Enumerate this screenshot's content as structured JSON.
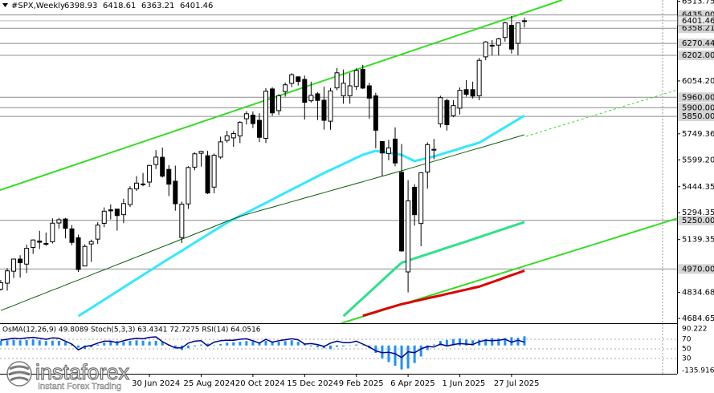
{
  "chart_data": {
    "type": "candlestick",
    "title": "#SPX,Weekly",
    "categories": [
      null,
      null,
      null,
      null,
      null,
      null,
      null,
      null,
      null,
      null,
      null,
      null,
      null,
      null,
      null,
      null,
      null,
      null,
      null,
      null,
      null,
      null,
      null,
      "30 Jun 2024",
      null,
      null,
      null,
      null,
      null,
      null,
      null,
      "25 Aug 2024",
      null,
      null,
      null,
      null,
      null,
      null,
      null,
      "20 Oct 2024",
      null,
      null,
      null,
      null,
      null,
      null,
      null,
      "15 Dec 2024",
      null,
      null,
      null,
      null,
      null,
      null,
      null,
      "9 Feb 2025",
      null,
      null,
      null,
      null,
      null,
      null,
      null,
      "6 Apr 2025",
      null,
      null,
      null,
      null,
      null,
      null,
      null,
      "1 Jun 2025",
      null,
      null,
      null,
      null,
      null,
      null,
      null,
      "27 Jul 2025",
      null,
      null
    ],
    "open": [
      4853,
      4888,
      4957,
      5027,
      4998,
      5094,
      5131,
      5115,
      5127,
      5235,
      5258,
      5201,
      5150,
      4987,
      5114,
      5142,
      5233,
      5311,
      5315,
      5283,
      5341,
      5432,
      5460,
      5471,
      5572,
      5614,
      5544,
      5476,
      5151,
      5345,
      5557,
      5637,
      5623,
      5442,
      5615,
      5711,
      5726,
      5737,
      5836,
      5857,
      5827,
      5723,
      6008,
      5883,
      5993,
      6040,
      6078,
      6063,
      5940,
      5980,
      5943,
      5822,
      6014,
      5969,
      5969,
      6023,
      6121,
      6026,
      5968,
      5705,
      5636,
      5719,
      5527,
      4953,
      5441,
      5232,
      5529,
      5655,
      5807,
      5941,
      5854,
      5897,
      6004,
      6004,
      5969,
      6193,
      6259,
      6261,
      6305,
      6375,
      6271,
      6398.93
    ],
    "high": [
      4907,
      4975,
      5030,
      5049,
      5111,
      5141,
      5190,
      5180,
      5262,
      5265,
      5264,
      5223,
      5168,
      5112,
      5139,
      5239,
      5325,
      5342,
      5315,
      5375,
      5447,
      5505,
      5524,
      5570,
      5655,
      5670,
      5569,
      5566,
      5358,
      5563,
      5643,
      5651,
      5651,
      5636,
      5733,
      5767,
      5765,
      5822,
      5879,
      5878,
      5868,
      6012,
      6018,
      5977,
      6045,
      6099,
      6079,
      6085,
      6050,
      5990,
      6021,
      6014,
      6128,
      6120,
      6101,
      6127,
      6147,
      6044,
      5986,
      5705,
      5715,
      5787,
      5691,
      5482,
      5459,
      5528,
      5700,
      5720,
      5969,
      5953,
      5943,
      6017,
      6059,
      6050,
      6187,
      6284,
      6290,
      6303,
      6395,
      6428,
      6389,
      6418.61
    ],
    "low": [
      4845,
      4845,
      4918,
      4920,
      4946,
      5057,
      5085,
      5104,
      5117,
      5203,
      5146,
      5107,
      4953,
      4985,
      5011,
      5114,
      5211,
      5256,
      5191,
      5234,
      5327,
      5420,
      5447,
      5443,
      5546,
      5497,
      5390,
      5306,
      5120,
      5316,
      5539,
      5560,
      5402,
      5406,
      5604,
      5698,
      5674,
      5696,
      5803,
      5783,
      5702,
      5696,
      5853,
      5858,
      5964,
      6019,
      6028,
      5832,
      5930,
      5829,
      5773,
      5773,
      6000,
      5923,
      5923,
      6003,
      6008,
      5837,
      5666,
      5505,
      5597,
      5562,
      5069,
      4835,
      5220,
      5101,
      5433,
      5603,
      5786,
      5768,
      5845,
      5861,
      5964,
      5953,
      5943,
      6174,
      6201,
      6201,
      6281,
      6212,
      6203,
      6363.21
    ],
    "close": [
      4891,
      4959,
      5027,
      5006,
      5089,
      5137,
      5124,
      5117,
      5234,
      5254,
      5204,
      5123,
      4967,
      5100,
      5128,
      5223,
      5303,
      5305,
      5278,
      5347,
      5432,
      5465,
      5460,
      5567,
      5615,
      5505,
      5459,
      5346,
      5344,
      5555,
      5634,
      5648,
      5408,
      5626,
      5703,
      5738,
      5751,
      5815,
      5865,
      5808,
      5729,
      5995,
      5870,
      5969,
      6032,
      6090,
      6051,
      5931,
      5971,
      5942,
      5827,
      5997,
      6101,
      6041,
      6026,
      6115,
      6013,
      5955,
      5770,
      5639,
      5668,
      5581,
      5074,
      5363,
      5283,
      5525,
      5687,
      5660,
      5958,
      5802,
      5912,
      6000,
      5977,
      5967,
      6173,
      6279,
      6260,
      6297,
      6389,
      6238,
      6389,
      6401.46
    ],
    "lines": [
      {
        "color": "#33e8ff",
        "width": 3,
        "values": [
          null,
          null,
          null,
          null,
          null,
          null,
          null,
          null,
          null,
          null,
          null,
          null,
          4698,
          4722,
          4745,
          4769,
          4793,
          4816,
          4840,
          4864,
          4888,
          4911,
          4935,
          4959,
          4982,
          5006,
          5029,
          5052,
          5075,
          5098,
          5122,
          5145,
          5168,
          5191,
          5214,
          5237,
          5256,
          5275,
          5294,
          5313,
          5332,
          5351,
          5370,
          5390,
          5409,
          5428,
          5447,
          5466,
          5485,
          5504,
          5523,
          5541,
          5558,
          5576,
          5593,
          5611,
          5628,
          5640,
          5651,
          5645,
          5640,
          5634,
          5628,
          5610,
          5592,
          5601,
          5610,
          5619,
          5630,
          5642,
          5653,
          5664,
          5676,
          5687,
          5698,
          5720,
          5743,
          5765,
          5787,
          5810,
          5832,
          5854
        ]
      },
      {
        "color": "#2fe08a",
        "width": 3,
        "values": [
          null,
          null,
          null,
          null,
          null,
          null,
          null,
          null,
          null,
          null,
          null,
          null,
          null,
          null,
          null,
          null,
          null,
          null,
          null,
          null,
          null,
          null,
          null,
          null,
          null,
          null,
          null,
          null,
          null,
          null,
          null,
          null,
          null,
          null,
          null,
          null,
          null,
          null,
          null,
          null,
          null,
          null,
          null,
          null,
          null,
          null,
          null,
          null,
          null,
          null,
          null,
          null,
          null,
          4698,
          4732,
          4767,
          4801,
          4835,
          4869,
          4904,
          4938,
          4972,
          5006,
          5018,
          5031,
          5043,
          5055,
          5067,
          5080,
          5092,
          5104,
          5116,
          5128,
          5141,
          5153,
          5166,
          5178,
          5191,
          5203,
          5216,
          5228,
          5240
        ]
      },
      {
        "color": "#dd0000",
        "width": 3,
        "values": [
          null,
          null,
          null,
          null,
          null,
          null,
          null,
          null,
          null,
          null,
          null,
          null,
          null,
          null,
          null,
          null,
          null,
          null,
          null,
          null,
          null,
          null,
          null,
          null,
          null,
          null,
          null,
          null,
          null,
          null,
          null,
          null,
          null,
          null,
          null,
          null,
          null,
          null,
          null,
          null,
          null,
          null,
          null,
          null,
          null,
          null,
          null,
          null,
          null,
          null,
          null,
          null,
          null,
          null,
          null,
          null,
          4700,
          4711,
          4722,
          4734,
          4745,
          4756,
          4767,
          4775,
          4784,
          4792,
          4801,
          4809,
          4817,
          4826,
          4834,
          4843,
          4851,
          4860,
          4868,
          4881,
          4894,
          4907,
          4921,
          4934,
          4947,
          4960
        ]
      },
      {
        "color": "#0b5e0b",
        "width": 1,
        "values": [
          4730,
          4745,
          4759,
          4774,
          4789,
          4804,
          4818,
          4833,
          4848,
          4862,
          4877,
          4892,
          4906,
          4921,
          4936,
          4951,
          4965,
          4980,
          4995,
          5009,
          5024,
          5039,
          5053,
          5068,
          5083,
          5098,
          5112,
          5127,
          5142,
          5156,
          5171,
          5186,
          5200,
          5215,
          5230,
          5245,
          5259,
          5274,
          5284,
          5295,
          5305,
          5316,
          5326,
          5337,
          5347,
          5358,
          5368,
          5379,
          5389,
          5400,
          5410,
          5421,
          5431,
          5442,
          5452,
          5463,
          5473,
          5484,
          5494,
          5505,
          5515,
          5526,
          5536,
          5547,
          5558,
          5569,
          5580,
          5591,
          5602,
          5613,
          5624,
          5635,
          5646,
          5657,
          5667,
          5678,
          5689,
          5700,
          5711,
          5722,
          5733,
          5744
        ]
      }
    ],
    "ylim": [
      4657,
      6521
    ],
    "yticks": [
      6513.75,
      {
        "value": 6054.2,
        "label": "6054.20"
      },
      5749.36,
      {
        "value": 5599.2,
        "label": "5599.20"
      },
      5444.35,
      5294.35,
      5139.35,
      4834.68,
      4684.65
    ],
    "levels": [
      {
        "value": 6435,
        "label": "6435.00"
      },
      6358.21,
      6270.44,
      {
        "value": 6202,
        "label": "6202.00"
      },
      {
        "value": 5960,
        "label": "5960.00"
      },
      {
        "value": 5900,
        "label": "5900.00"
      },
      {
        "value": 5850,
        "label": "5850.00"
      },
      {
        "value": 5250,
        "label": "5250.00"
      },
      {
        "value": 4970,
        "label": "4970.00"
      }
    ],
    "indicators": {
      "label": "OsMA(12,26,9) 49.8089  Stoch(5,3,3) 63.4341 72.7275  RSI(14) 64.0516",
      "osma": {
        "color": "#1e90ff",
        "ylim": [
          -135.9167,
          90.222
        ],
        "ticks": [
          90.222,
          -135.9167
        ],
        "values": [
          25,
          28,
          30,
          28,
          30,
          32,
          28,
          24,
          26,
          25,
          18,
          8,
          -12,
          -20,
          -10,
          5,
          15,
          22,
          24,
          20,
          25,
          28,
          26,
          22,
          25,
          18,
          5,
          -12,
          -25,
          -15,
          -5,
          5,
          10,
          -2,
          8,
          15,
          18,
          20,
          24,
          22,
          15,
          25,
          18,
          20,
          24,
          28,
          20,
          8,
          -5,
          -10,
          -15,
          -20,
          -8,
          -5,
          -2,
          5,
          2,
          -15,
          -40,
          -70,
          -90,
          -110,
          -130,
          -125,
          -95,
          -60,
          -25,
          5,
          25,
          30,
          35,
          38,
          32,
          28,
          30,
          35,
          40,
          38,
          40,
          45,
          42,
          49.8089
        ]
      },
      "rsi": {
        "color": "#00008b",
        "ylim": [
          0,
          100
        ],
        "levels": [
          70,
          50,
          30
        ],
        "values": [
          68,
          70,
          72,
          71,
          73,
          74,
          72,
          70,
          73,
          72,
          66,
          60,
          48,
          55,
          57,
          62,
          66,
          66,
          63,
          67,
          70,
          72,
          71,
          74,
          75,
          65,
          58,
          52,
          52,
          62,
          66,
          67,
          56,
          64,
          67,
          68,
          68,
          70,
          71,
          67,
          62,
          70,
          64,
          67,
          69,
          71,
          69,
          60,
          61,
          59,
          55,
          62,
          66,
          63,
          63,
          66,
          60,
          54,
          46,
          42,
          43,
          40,
          32,
          44,
          42,
          50,
          55,
          54,
          60,
          56,
          59,
          61,
          60,
          59,
          65,
          68,
          67,
          68,
          70,
          64,
          68,
          64.0516
        ]
      }
    },
    "watermark": {
      "brand": "instaforex",
      "tagline": "Instant Forex Trading"
    }
  }
}
